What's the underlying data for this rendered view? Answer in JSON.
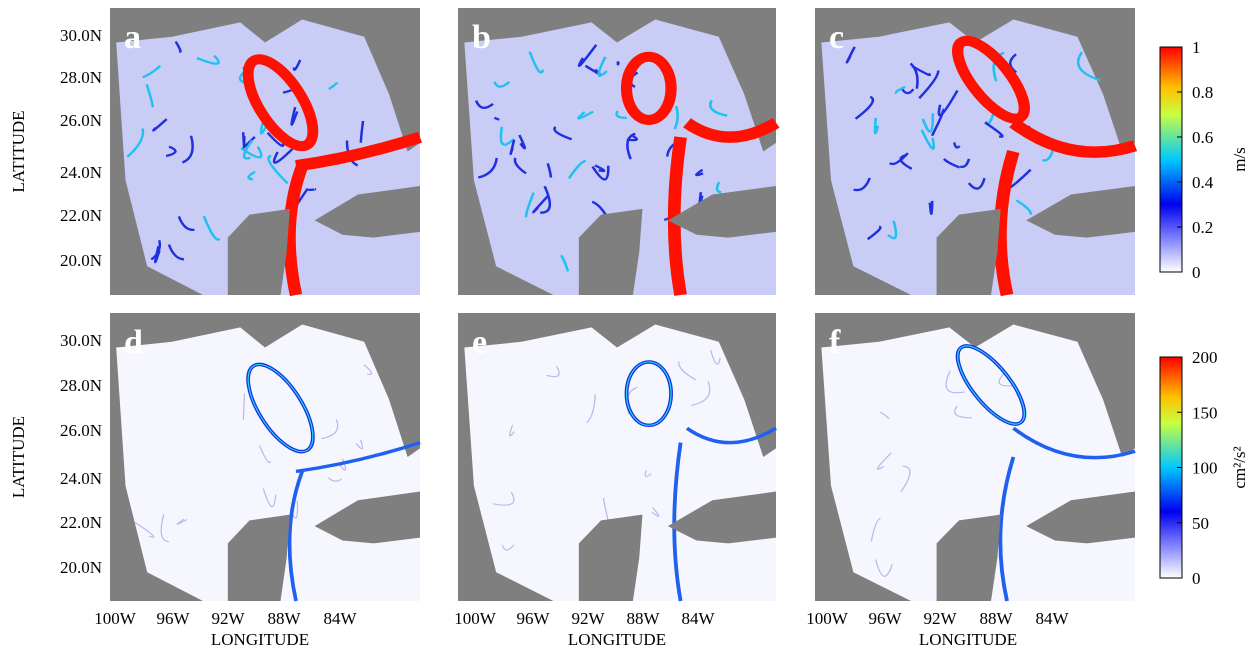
{
  "panels": [
    {
      "label": "a"
    },
    {
      "label": "b"
    },
    {
      "label": "c"
    },
    {
      "label": "d"
    },
    {
      "label": "e"
    },
    {
      "label": "f"
    }
  ],
  "y_axis": {
    "label": "LATITUDE",
    "ticks": [
      "30.0N",
      "28.0N",
      "26.0N",
      "24.0N",
      "22.0N",
      "20.0N"
    ]
  },
  "x_axis": {
    "label": "LONGITUDE",
    "ticks": [
      "100W",
      "96W",
      "92W",
      "88W",
      "84W"
    ]
  },
  "colorbars": [
    {
      "label": "m/s",
      "range": [
        0,
        1
      ],
      "ticks": [
        0,
        0.2,
        0.4,
        0.6,
        0.8,
        1
      ]
    },
    {
      "label": "cm²/s²",
      "range": [
        0,
        200
      ],
      "ticks": [
        0,
        50,
        100,
        150,
        200
      ]
    }
  ]
}
